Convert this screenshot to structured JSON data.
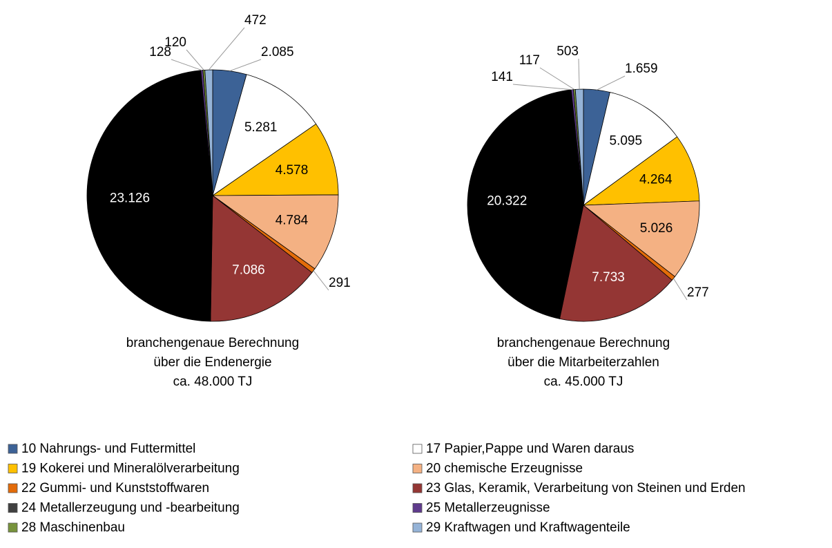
{
  "chart_data": [
    {
      "type": "pie",
      "title": [
        "branchengenaue  Berechnung",
        "über die Endenergie",
        "ca. 48.000 TJ"
      ],
      "values": [
        2085,
        5281,
        4578,
        4784,
        291,
        7086,
        23126,
        128,
        120,
        472
      ],
      "value_labels": [
        "2.085",
        "5.281",
        "4.578",
        "4.784",
        "291",
        "7.086",
        "23.126",
        "128",
        "120",
        "472"
      ]
    },
    {
      "type": "pie",
      "title": [
        "branchengenaue  Berechnung",
        "über die Mitarbeiterzahlen",
        "ca. 45.000 TJ"
      ],
      "values": [
        1659,
        5095,
        4264,
        5026,
        277,
        7733,
        20322,
        141,
        117,
        503
      ],
      "value_labels": [
        "1.659",
        "5.095",
        "4.264",
        "5.026",
        "277",
        "7.733",
        "20.322",
        "141",
        "117",
        "503"
      ]
    }
  ],
  "legend": {
    "categories": [
      "10 Nahrungs- und Futtermittel",
      "17 Papier,Pappe und Waren daraus",
      "19 Kokerei und Mineralölverarbeitung",
      "20 chemische Erzeugnisse",
      "22 Gummi- und Kunststoffwaren",
      "23 Glas, Keramik, Verarbeitung von Steinen und Erden",
      "24 Metallerzeugung und -bearbeitung",
      "25 Metallerzeugnisse",
      "28 Maschinenbau",
      "29 Kraftwagen und Kraftwagenteile"
    ],
    "colors": [
      "#3c6296",
      "#ffffff",
      "#ffc000",
      "#f4b183",
      "#e36c09",
      "#943634",
      "#000000",
      "#5f3b8c",
      "#77933c",
      "#95b3d7"
    ]
  }
}
